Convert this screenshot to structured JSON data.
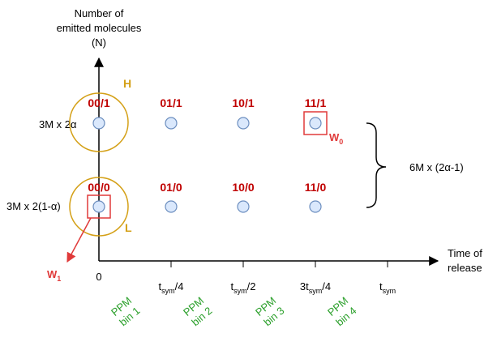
{
  "y_axis_label": [
    "Number of",
    "emitted molecules",
    "(N)"
  ],
  "x_axis_label": [
    "Time of",
    "release"
  ],
  "origin_label": "0",
  "row_labels": {
    "top": "3M x 2α",
    "bottom": "3M x 2(1-α)"
  },
  "brace_label": "6M x (2α-1)",
  "top_row_codes": [
    "00/1",
    "01/1",
    "10/1",
    "11/1"
  ],
  "bottom_row_codes": [
    "00/0",
    "01/0",
    "10/0",
    "11/0"
  ],
  "circle_labels": {
    "high": "H",
    "low": "L"
  },
  "w0": {
    "base": "W",
    "sub": "0"
  },
  "w1": {
    "base": "W",
    "sub": "1"
  },
  "ticks": [
    {
      "pre": "t",
      "sub": "sym",
      "post": "/4"
    },
    {
      "pre": "t",
      "sub": "sym",
      "post": "/2"
    },
    {
      "pre": "3t",
      "sub": "sym",
      "post": "/4"
    },
    {
      "pre": "t",
      "sub": "sym",
      "post": ""
    }
  ],
  "ppm_bins": [
    {
      "line1": "PPM",
      "line2": "bin 1"
    },
    {
      "line1": "PPM",
      "line2": "bin 2"
    },
    {
      "line1": "PPM",
      "line2": "bin 3"
    },
    {
      "line1": "PPM",
      "line2": "bin 4"
    }
  ],
  "colors": {
    "code_red": "#c00000",
    "circle_gold": "#d4a017",
    "box_red": "#e03a3a",
    "ppm_green": "#2ca02c",
    "dot_fill": "#dae8fc",
    "dot_stroke": "#6c8ebf"
  }
}
